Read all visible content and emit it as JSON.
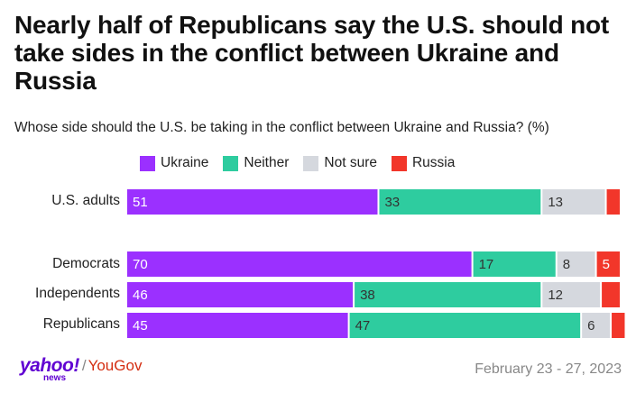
{
  "title": "Nearly half of Republicans say the U.S. should not take sides in the conflict between Ukraine and Russia",
  "subtitle": "Whose side should the U.S. be taking in the conflict between Ukraine and Russia? (%)",
  "footer": {
    "brand_yahoo": "yahoo!",
    "brand_news": "news",
    "separator": "/",
    "brand_yougov": "YouGov",
    "date": "February 23 - 27, 2023"
  },
  "chart_data": {
    "type": "bar",
    "orientation": "horizontal",
    "stacked": true,
    "title": "Nearly half of Republicans say the U.S. should not take sides in the conflict between Ukraine and Russia",
    "subtitle": "Whose side should the U.S. be taking in the conflict between Ukraine and Russia? (%)",
    "unit": "%",
    "xlim": [
      0,
      100
    ],
    "legend_position": "top",
    "categories": [
      "U.S. adults",
      "Democrats",
      "Independents",
      "Republicans"
    ],
    "series": [
      {
        "name": "Ukraine",
        "color": "#9b30ff",
        "values": [
          51,
          70,
          46,
          45
        ],
        "labels": [
          "51",
          "70",
          "46",
          "45"
        ]
      },
      {
        "name": "Neither",
        "color": "#2ecc9f",
        "values": [
          33,
          17,
          38,
          47
        ],
        "labels": [
          "33",
          "17",
          "38",
          "47"
        ]
      },
      {
        "name": "Not sure",
        "color": "#d5d8de",
        "values": [
          13,
          8,
          12,
          6
        ],
        "labels": [
          "13",
          "8",
          "12",
          "6"
        ]
      },
      {
        "name": "Russia",
        "color": "#f2362a",
        "values": [
          3,
          5,
          4,
          3
        ],
        "labels": [
          "",
          "5",
          "",
          ""
        ]
      }
    ]
  }
}
